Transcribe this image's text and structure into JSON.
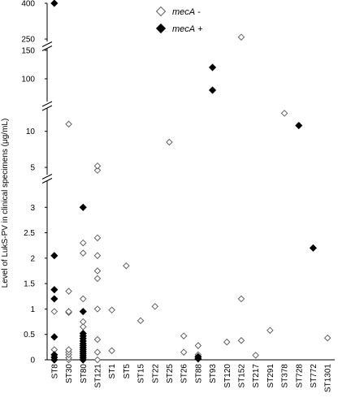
{
  "chart_data": {
    "type": "scatter",
    "ylabel": "Level of LukS-PV in clinical specimens (μg/mL)",
    "xlabel": "",
    "categories": [
      "ST8",
      "ST30",
      "ST80",
      "ST121",
      "ST1",
      "ST5",
      "ST15",
      "ST22",
      "ST25",
      "ST26",
      "ST88",
      "ST93",
      "ST120",
      "ST152",
      "ST217",
      "ST291",
      "ST378",
      "ST728",
      "ST772",
      "ST1301"
    ],
    "y_axis_segments": [
      {
        "range": [
          0,
          3.5
        ],
        "ticks": [
          "0",
          "0.5",
          "1",
          "1.5",
          "2",
          "2.5",
          "3"
        ]
      },
      {
        "range": [
          4,
          13
        ],
        "ticks": [
          "5",
          "10"
        ]
      },
      {
        "range": [
          60,
          150
        ],
        "ticks": [
          "100",
          "150"
        ]
      },
      {
        "range": [
          240,
          400
        ],
        "ticks": [
          "250",
          "400"
        ]
      }
    ],
    "axis_breaks": true,
    "grid": false,
    "legend_position": "top-center",
    "series": [
      {
        "name": "mecA -",
        "marker": "open-diamond",
        "points": [
          {
            "x": "ST8",
            "y": 0
          },
          {
            "x": "ST8",
            "y": 0.05
          },
          {
            "x": "ST8",
            "y": 0.1
          },
          {
            "x": "ST8",
            "y": 0.2
          },
          {
            "x": "ST8",
            "y": 0.95
          },
          {
            "x": "ST30",
            "y": 0
          },
          {
            "x": "ST30",
            "y": 0.04
          },
          {
            "x": "ST30",
            "y": 0.1
          },
          {
            "x": "ST30",
            "y": 0.15
          },
          {
            "x": "ST30",
            "y": 0.2
          },
          {
            "x": "ST30",
            "y": 0.93
          },
          {
            "x": "ST30",
            "y": 0.95
          },
          {
            "x": "ST30",
            "y": 1.35
          },
          {
            "x": "ST30",
            "y": 11
          },
          {
            "x": "ST80",
            "y": 0.65
          },
          {
            "x": "ST80",
            "y": 0.75
          },
          {
            "x": "ST80",
            "y": 1.2
          },
          {
            "x": "ST80",
            "y": 2.1
          },
          {
            "x": "ST80",
            "y": 2.3
          },
          {
            "x": "ST121",
            "y": 0
          },
          {
            "x": "ST121",
            "y": 0.15
          },
          {
            "x": "ST121",
            "y": 0.4
          },
          {
            "x": "ST121",
            "y": 1
          },
          {
            "x": "ST121",
            "y": 1.6
          },
          {
            "x": "ST121",
            "y": 1.75
          },
          {
            "x": "ST121",
            "y": 2.05
          },
          {
            "x": "ST121",
            "y": 2.4
          },
          {
            "x": "ST121",
            "y": 4.6
          },
          {
            "x": "ST121",
            "y": 5.2
          },
          {
            "x": "ST1",
            "y": 0.18
          },
          {
            "x": "ST1",
            "y": 0.98
          },
          {
            "x": "ST5",
            "y": 1.85
          },
          {
            "x": "ST15",
            "y": 0.77
          },
          {
            "x": "ST22",
            "y": 1.05
          },
          {
            "x": "ST25",
            "y": 8.5
          },
          {
            "x": "ST26",
            "y": 0.15
          },
          {
            "x": "ST26",
            "y": 0.47
          },
          {
            "x": "ST88",
            "y": 0.05
          },
          {
            "x": "ST88",
            "y": 0.1
          },
          {
            "x": "ST88",
            "y": 0.28
          },
          {
            "x": "ST120",
            "y": 0.35
          },
          {
            "x": "ST152",
            "y": 0.38
          },
          {
            "x": "ST152",
            "y": 1.2
          },
          {
            "x": "ST152",
            "y": 258
          },
          {
            "x": "ST217",
            "y": 0.09
          },
          {
            "x": "ST291",
            "y": 0.58
          },
          {
            "x": "ST378",
            "y": 12.5
          },
          {
            "x": "ST1301",
            "y": 0.43
          }
        ]
      },
      {
        "name": "mecA +",
        "marker": "filled-diamond",
        "points": [
          {
            "x": "ST8",
            "y": 0
          },
          {
            "x": "ST8",
            "y": 0.05
          },
          {
            "x": "ST8",
            "y": 0.1
          },
          {
            "x": "ST8",
            "y": 0.45
          },
          {
            "x": "ST8",
            "y": 1.2
          },
          {
            "x": "ST8",
            "y": 1.38
          },
          {
            "x": "ST8",
            "y": 2.05
          },
          {
            "x": "ST8",
            "y": 400
          },
          {
            "x": "ST80",
            "y": 0
          },
          {
            "x": "ST80",
            "y": 0.04
          },
          {
            "x": "ST80",
            "y": 0.08
          },
          {
            "x": "ST80",
            "y": 0.12
          },
          {
            "x": "ST80",
            "y": 0.16
          },
          {
            "x": "ST80",
            "y": 0.2
          },
          {
            "x": "ST80",
            "y": 0.24
          },
          {
            "x": "ST80",
            "y": 0.28
          },
          {
            "x": "ST80",
            "y": 0.32
          },
          {
            "x": "ST80",
            "y": 0.37
          },
          {
            "x": "ST80",
            "y": 0.42
          },
          {
            "x": "ST80",
            "y": 0.47
          },
          {
            "x": "ST80",
            "y": 0.52
          },
          {
            "x": "ST80",
            "y": 0.95
          },
          {
            "x": "ST80",
            "y": 3
          },
          {
            "x": "ST88",
            "y": 0.02
          },
          {
            "x": "ST88",
            "y": 0.06
          },
          {
            "x": "ST93",
            "y": 80
          },
          {
            "x": "ST93",
            "y": 120
          },
          {
            "x": "ST728",
            "y": 10.8
          },
          {
            "x": "ST772",
            "y": 2.2
          }
        ]
      }
    ]
  }
}
